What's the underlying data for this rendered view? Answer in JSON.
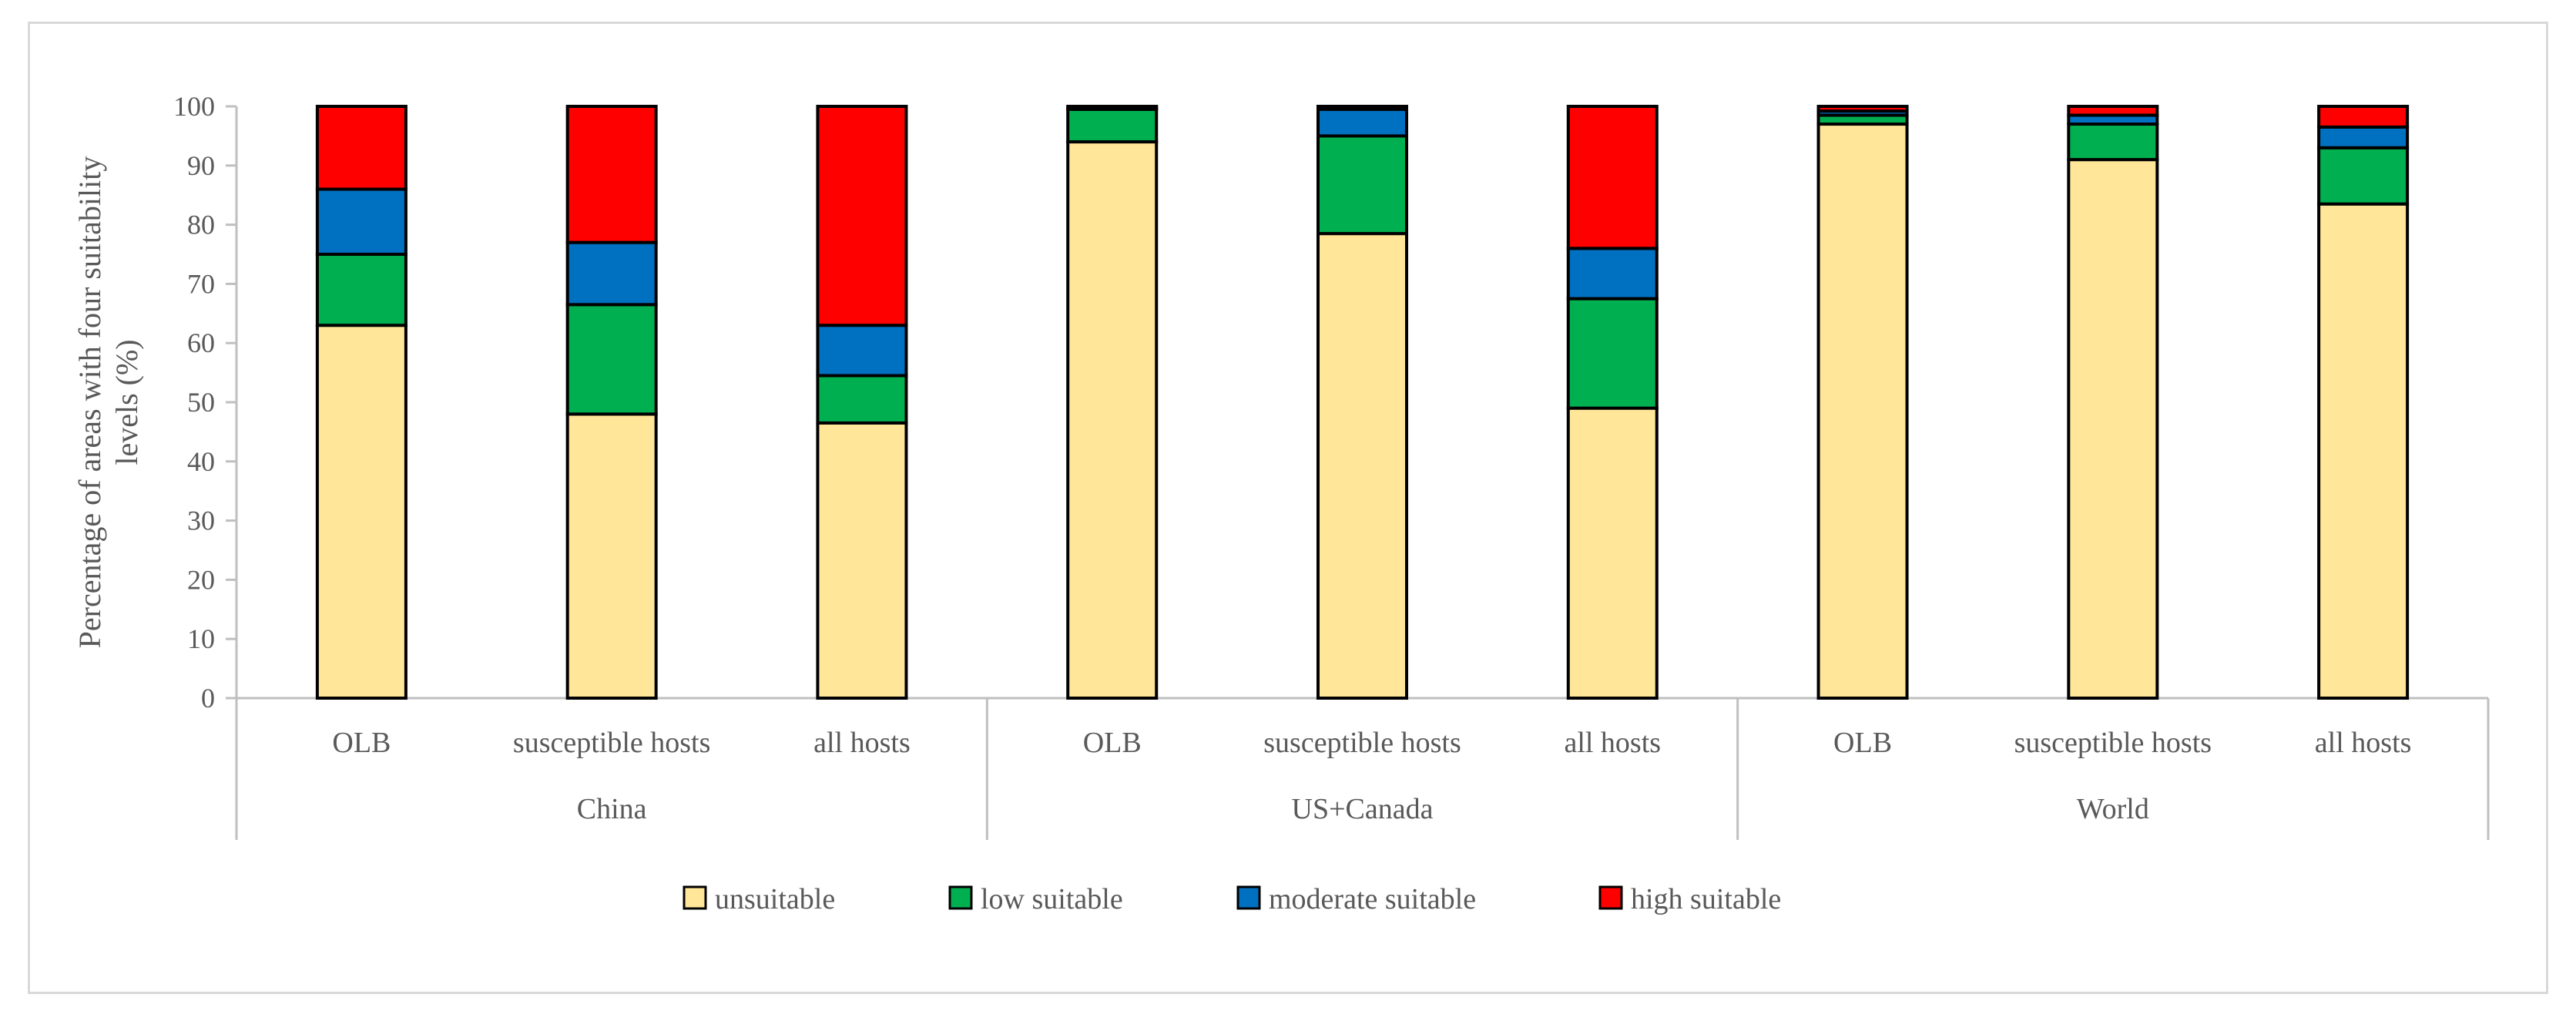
{
  "chart_data": {
    "type": "stacked-bar",
    "title": "",
    "xlabel": "",
    "ylabel_lines": [
      "Percentage of areas with  four suitability",
      "levels (%)"
    ],
    "ylim": [
      0,
      100
    ],
    "yticks": [
      0,
      10,
      20,
      30,
      40,
      50,
      60,
      70,
      80,
      90,
      100
    ],
    "grid": false,
    "legend_position": "bottom",
    "groups": [
      "China",
      "US+Canada",
      "World"
    ],
    "categories": [
      "OLB",
      "susceptible hosts",
      "all hosts",
      "OLB",
      "susceptible hosts",
      "all hosts",
      "OLB",
      "susceptible hosts",
      "all hosts"
    ],
    "series": [
      {
        "name": "unsuitable",
        "color": "#FFE699",
        "values": [
          63,
          48,
          46.5,
          94,
          78.5,
          49,
          97,
          91,
          83.5
        ]
      },
      {
        "name": "low suitable",
        "color": "#00B050",
        "values": [
          12,
          18.5,
          8,
          5.5,
          16.5,
          18.5,
          1.5,
          6,
          9.5
        ]
      },
      {
        "name": "moderate suitable",
        "color": "#0070C0",
        "values": [
          11,
          10.5,
          8.5,
          0.3,
          4.5,
          8.5,
          0.7,
          1.5,
          3.5
        ]
      },
      {
        "name": "high suitable",
        "color": "#FF0000",
        "values": [
          14,
          23,
          37,
          0.2,
          0.5,
          24,
          0.8,
          1.5,
          3.5
        ]
      }
    ]
  }
}
